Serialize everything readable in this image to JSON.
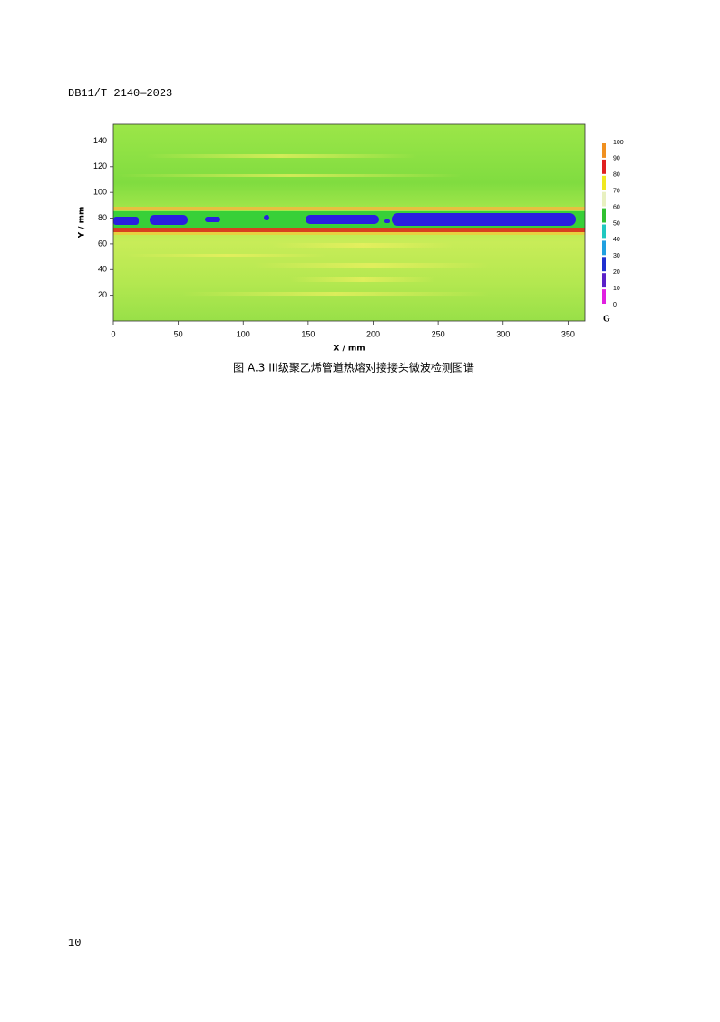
{
  "header": {
    "code": "DB11/T 2140—2023"
  },
  "chart_data": {
    "type": "heatmap",
    "xlabel": "X / mm",
    "ylabel": "Y / mm",
    "xlim": [
      0,
      363
    ],
    "ylim": [
      0,
      153
    ],
    "xticks": [
      0,
      50,
      100,
      150,
      200,
      250,
      300,
      350
    ],
    "yticks": [
      20,
      40,
      60,
      80,
      100,
      120,
      140
    ],
    "colorbar": {
      "label": "G",
      "clim": [
        0,
        100
      ],
      "ticks": [
        0,
        10,
        20,
        30,
        40,
        50,
        60,
        70,
        80,
        90,
        100
      ],
      "colors": [
        "#e020e0",
        "#5a20c8",
        "#2030d0",
        "#20a0e0",
        "#20c8c0",
        "#30c030",
        "#e8f0c0",
        "#f0e820",
        "#e02020",
        "#f09020"
      ]
    }
  },
  "caption": "图 A.3   III级聚乙烯管道热熔对接接头微波检测图谱",
  "footer": {
    "page_number": "10"
  }
}
